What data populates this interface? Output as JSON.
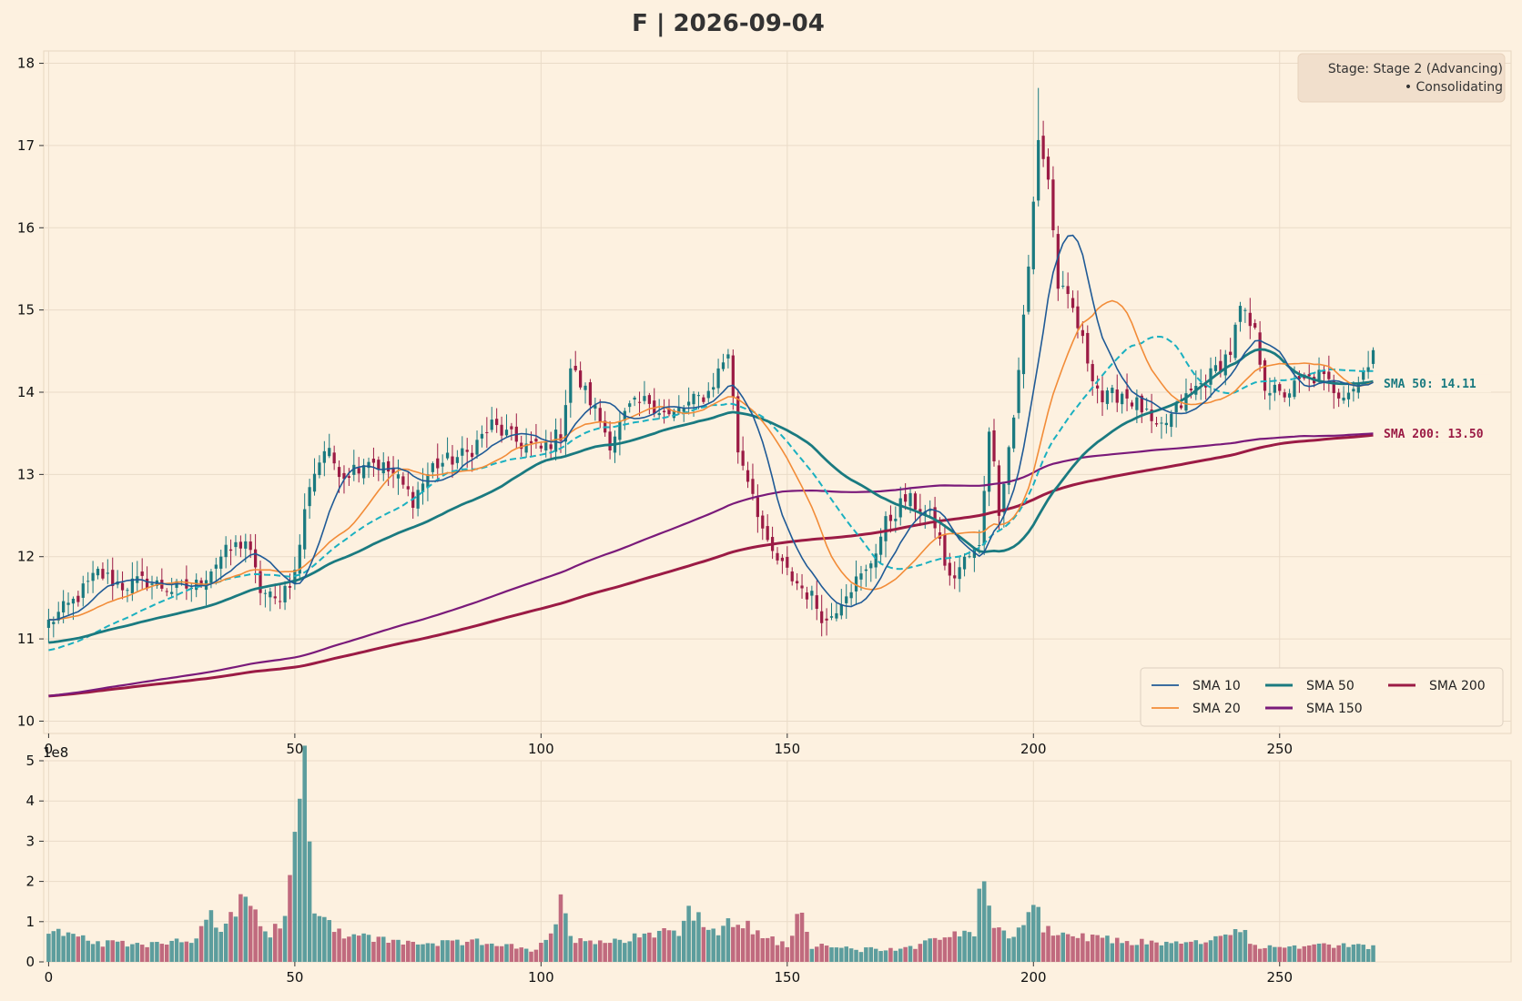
{
  "chart_data": {
    "type": "candlestick",
    "title": "F | 2026-09-04",
    "stage_box": {
      "line1": "Stage: Stage 2 (Advancing)",
      "line2": "• Consolidating",
      "placement": "top-right"
    },
    "price_panel": {
      "xlim": [
        -1,
        297
      ],
      "ylim": [
        9.85,
        18.15
      ],
      "x_ticks": [
        0,
        50,
        100,
        150,
        200,
        250
      ],
      "y_ticks": [
        10,
        11,
        12,
        13,
        14,
        15,
        16,
        17,
        18
      ],
      "grid": true
    },
    "volume_panel": {
      "ylim": [
        0,
        5
      ],
      "y_ticks": [
        0,
        1,
        2,
        3,
        4,
        5
      ],
      "x_ticks": [
        0,
        50,
        100,
        150,
        200,
        250
      ],
      "offset_label": "1e8",
      "grid": true
    },
    "legend": {
      "placement": "lower-right",
      "entries": [
        {
          "name": "SMA 10",
          "color": "#1f5a96"
        },
        {
          "name": "SMA 20",
          "color": "#f28c38"
        },
        {
          "name": "SMA 50",
          "color": "#1a7a80"
        },
        {
          "name": "SMA 150",
          "color": "#7a1a7a"
        },
        {
          "name": "SMA 200",
          "color": "#9b1b45"
        }
      ]
    },
    "ma_tags": [
      {
        "label": "SMA 50: 14.11",
        "value": 14.11,
        "color": "#1a7a80"
      },
      {
        "name": "SMA 200",
        "label": "SMA 200: 13.50",
        "value": 13.5,
        "color": "#9b1b45"
      }
    ],
    "colors": {
      "up": "#1a7a80",
      "down": "#9b1b45",
      "vol_up": "#5c9d9d",
      "vol_down": "#c06a7e",
      "dashed": "#1ab0c0"
    },
    "close_keypoints": [
      [
        0,
        11.2
      ],
      [
        5,
        11.45
      ],
      [
        10,
        11.8
      ],
      [
        15,
        11.65
      ],
      [
        20,
        11.7
      ],
      [
        25,
        11.6
      ],
      [
        30,
        11.65
      ],
      [
        35,
        12.0
      ],
      [
        40,
        12.2
      ],
      [
        43,
        11.6
      ],
      [
        46,
        11.45
      ],
      [
        50,
        11.8
      ],
      [
        53,
        12.9
      ],
      [
        56,
        13.3
      ],
      [
        60,
        13.0
      ],
      [
        65,
        13.2
      ],
      [
        70,
        13.0
      ],
      [
        74,
        12.7
      ],
      [
        78,
        13.1
      ],
      [
        85,
        13.25
      ],
      [
        90,
        13.6
      ],
      [
        95,
        13.4
      ],
      [
        100,
        13.3
      ],
      [
        104,
        13.5
      ],
      [
        106,
        14.3
      ],
      [
        110,
        13.9
      ],
      [
        114,
        13.4
      ],
      [
        118,
        13.8
      ],
      [
        122,
        13.9
      ],
      [
        126,
        13.7
      ],
      [
        130,
        13.85
      ],
      [
        134,
        14.0
      ],
      [
        138,
        14.5
      ],
      [
        140,
        13.3
      ],
      [
        143,
        12.8
      ],
      [
        146,
        12.1
      ],
      [
        150,
        11.8
      ],
      [
        155,
        11.5
      ],
      [
        158,
        11.2
      ],
      [
        162,
        11.6
      ],
      [
        166,
        11.8
      ],
      [
        170,
        12.4
      ],
      [
        174,
        12.7
      ],
      [
        177,
        12.6
      ],
      [
        180,
        12.4
      ],
      [
        183,
        11.7
      ],
      [
        186,
        11.95
      ],
      [
        189,
        12.1
      ],
      [
        191,
        13.6
      ],
      [
        193,
        12.6
      ],
      [
        196,
        13.7
      ],
      [
        199,
        15.5
      ],
      [
        201,
        17.1
      ],
      [
        203,
        16.6
      ],
      [
        205,
        15.3
      ],
      [
        208,
        15.0
      ],
      [
        211,
        14.4
      ],
      [
        214,
        13.9
      ],
      [
        218,
        14.0
      ],
      [
        222,
        13.8
      ],
      [
        225,
        13.5
      ],
      [
        228,
        13.7
      ],
      [
        232,
        14.0
      ],
      [
        236,
        14.2
      ],
      [
        240,
        14.5
      ],
      [
        242,
        15.0
      ],
      [
        245,
        14.7
      ],
      [
        247,
        14.1
      ],
      [
        250,
        13.95
      ],
      [
        254,
        14.1
      ],
      [
        258,
        14.2
      ],
      [
        262,
        14.0
      ],
      [
        266,
        14.1
      ],
      [
        269,
        14.55
      ]
    ],
    "volume_keypoints": [
      [
        0,
        0.8
      ],
      [
        10,
        0.45
      ],
      [
        20,
        0.45
      ],
      [
        30,
        0.6
      ],
      [
        33,
        1.1
      ],
      [
        35,
        0.75
      ],
      [
        39,
        1.5
      ],
      [
        45,
        0.7
      ],
      [
        48,
        1.05
      ],
      [
        50,
        2.95
      ],
      [
        51,
        4.15
      ],
      [
        52,
        4.8
      ],
      [
        53,
        2.9
      ],
      [
        54,
        1.5
      ],
      [
        55,
        1.2
      ],
      [
        60,
        0.7
      ],
      [
        70,
        0.5
      ],
      [
        80,
        0.45
      ],
      [
        90,
        0.5
      ],
      [
        95,
        0.35
      ],
      [
        98,
        0.25
      ],
      [
        102,
        0.6
      ],
      [
        104,
        1.5
      ],
      [
        106,
        0.6
      ],
      [
        115,
        0.5
      ],
      [
        120,
        0.7
      ],
      [
        128,
        0.8
      ],
      [
        130,
        1.3
      ],
      [
        135,
        0.7
      ],
      [
        140,
        1.05
      ],
      [
        145,
        0.6
      ],
      [
        150,
        0.45
      ],
      [
        153,
        1.4
      ],
      [
        155,
        0.4
      ],
      [
        165,
        0.3
      ],
      [
        175,
        0.35
      ],
      [
        180,
        0.6
      ],
      [
        185,
        0.7
      ],
      [
        188,
        0.6
      ],
      [
        189,
        2.15
      ],
      [
        190,
        1.85
      ],
      [
        192,
        1.0
      ],
      [
        196,
        0.6
      ],
      [
        198,
        1.0
      ],
      [
        200,
        1.5
      ],
      [
        202,
        0.8
      ],
      [
        210,
        0.6
      ],
      [
        220,
        0.5
      ],
      [
        230,
        0.45
      ],
      [
        240,
        0.6
      ],
      [
        241,
        1.0
      ],
      [
        245,
        0.4
      ],
      [
        255,
        0.35
      ],
      [
        265,
        0.45
      ],
      [
        269,
        0.35
      ]
    ]
  }
}
